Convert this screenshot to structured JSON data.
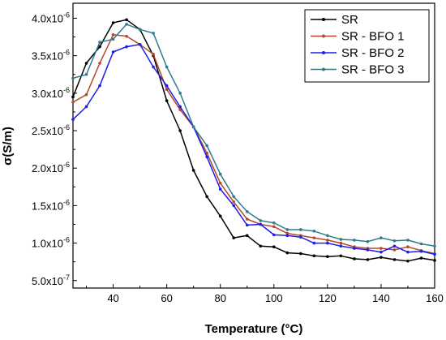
{
  "chart_data": {
    "type": "line",
    "xlabel": "Temperature (°C)",
    "ylabel": "σ(S/m)",
    "xlim": [
      25,
      160
    ],
    "ylim": [
      4e-07,
      4.2e-06
    ],
    "x_ticks": [
      40,
      60,
      80,
      100,
      120,
      140,
      160
    ],
    "x_tick_labels": [
      "40",
      "60",
      "80",
      "100",
      "120",
      "140",
      "160"
    ],
    "y_ticks": [
      5e-07,
      1e-06,
      1.5e-06,
      2e-06,
      2.5e-06,
      3e-06,
      3.5e-06,
      4e-06
    ],
    "y_tick_labels": [
      {
        "mantissa": "5.0x10",
        "exp": "-7"
      },
      {
        "mantissa": "1.0x10",
        "exp": "-6"
      },
      {
        "mantissa": "1.5x10",
        "exp": "-6"
      },
      {
        "mantissa": "2.0x10",
        "exp": "-6"
      },
      {
        "mantissa": "2.5x10",
        "exp": "-6"
      },
      {
        "mantissa": "3.0x10",
        "exp": "-6"
      },
      {
        "mantissa": "3.5x10",
        "exp": "-6"
      },
      {
        "mantissa": "4.0x10",
        "exp": "-6"
      }
    ],
    "legend_position": "top-right",
    "grid": false,
    "series": [
      {
        "name": "SR",
        "color": "#000000",
        "x": [
          25,
          30,
          35,
          40,
          45,
          50,
          55,
          60,
          65,
          70,
          75,
          80,
          85,
          90,
          95,
          100,
          105,
          110,
          115,
          120,
          125,
          130,
          135,
          140,
          145,
          150,
          155,
          160
        ],
        "y": [
          2.95e-06,
          3.4e-06,
          3.62e-06,
          3.94e-06,
          3.98e-06,
          3.85e-06,
          3.5e-06,
          2.9e-06,
          2.5e-06,
          1.97e-06,
          1.62e-06,
          1.36e-06,
          1.07e-06,
          1.1e-06,
          9.6e-07,
          9.5e-07,
          8.7e-07,
          8.6e-07,
          8.3e-07,
          8.2e-07,
          8.3e-07,
          7.9e-07,
          7.8e-07,
          8.1e-07,
          7.8e-07,
          7.6e-07,
          8e-07,
          7.7e-07
        ]
      },
      {
        "name": "SR - BFO 1",
        "color": "#b5482a",
        "x": [
          25,
          30,
          35,
          40,
          45,
          50,
          55,
          60,
          65,
          70,
          75,
          80,
          85,
          90,
          95,
          100,
          105,
          110,
          115,
          120,
          125,
          130,
          135,
          140,
          145,
          150,
          155,
          160
        ],
        "y": [
          2.88e-06,
          2.98e-06,
          3.4e-06,
          3.78e-06,
          3.76e-06,
          3.65e-06,
          3.52e-06,
          3.05e-06,
          2.78e-06,
          2.55e-06,
          2.2e-06,
          1.8e-06,
          1.55e-06,
          1.32e-06,
          1.25e-06,
          1.22e-06,
          1.13e-06,
          1.1e-06,
          1.07e-06,
          1.04e-06,
          1e-06,
          9.5e-07,
          9.3e-07,
          9.3e-07,
          9.1e-07,
          9.5e-07,
          9e-07,
          8.6e-07
        ]
      },
      {
        "name": "SR - BFO 2",
        "color": "#1e1ee6",
        "x": [
          25,
          30,
          35,
          40,
          45,
          50,
          55,
          60,
          65,
          70,
          75,
          80,
          85,
          90,
          95,
          100,
          105,
          110,
          115,
          120,
          125,
          130,
          135,
          140,
          145,
          150,
          155,
          160
        ],
        "y": [
          2.65e-06,
          2.82e-06,
          3.1e-06,
          3.55e-06,
          3.62e-06,
          3.65e-06,
          3.35e-06,
          3.1e-06,
          2.82e-06,
          2.55e-06,
          2.15e-06,
          1.72e-06,
          1.5e-06,
          1.24e-06,
          1.25e-06,
          1.11e-06,
          1.1e-06,
          1.08e-06,
          1e-06,
          1e-06,
          9.6e-07,
          9.3e-07,
          9.1e-07,
          8.8e-07,
          9.6e-07,
          8.8e-07,
          8.9e-07,
          8.5e-07
        ]
      },
      {
        "name": "SR - BFO 3",
        "color": "#2e7b8f",
        "x": [
          25,
          30,
          35,
          40,
          45,
          50,
          55,
          60,
          65,
          70,
          75,
          80,
          85,
          90,
          95,
          100,
          105,
          110,
          115,
          120,
          125,
          130,
          135,
          140,
          145,
          150,
          155,
          160
        ],
        "y": [
          3.2e-06,
          3.25e-06,
          3.68e-06,
          3.72e-06,
          3.92e-06,
          3.85e-06,
          3.8e-06,
          3.35e-06,
          3e-06,
          2.55e-06,
          2.3e-06,
          1.92e-06,
          1.62e-06,
          1.42e-06,
          1.3e-06,
          1.27e-06,
          1.18e-06,
          1.18e-06,
          1.16e-06,
          1.1e-06,
          1.05e-06,
          1.04e-06,
          1.02e-06,
          1.07e-06,
          1.03e-06,
          1.04e-06,
          9.9e-07,
          9.6e-07
        ]
      }
    ]
  }
}
